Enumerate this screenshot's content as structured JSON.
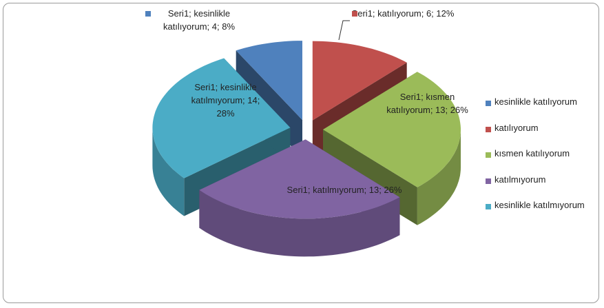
{
  "chart_data": {
    "type": "pie3d",
    "categories": [
      "kesinlikle katılıyorum",
      "katılıyorum",
      "kısmen katılıyorum",
      "katılmıyorum",
      "kesinlikle katılmıyorum"
    ],
    "values": [
      4,
      6,
      13,
      13,
      14
    ],
    "value_labels": [
      "Seri1; kesinlikle katılıyorum; 4; 8%",
      "Seri1; katılıyorum; 6; 12%",
      "Seri1; kısmen katılıyorum; 13; 26%",
      "Seri1; katılmıyorum; 13; 26%",
      "Seri1; kesinlikle katılmıyorum; 14; 28%"
    ],
    "colors": [
      "#4f81bd",
      "#c0504d",
      "#9bbb59",
      "#8064a2",
      "#4bacc6"
    ],
    "legend": "right"
  }
}
